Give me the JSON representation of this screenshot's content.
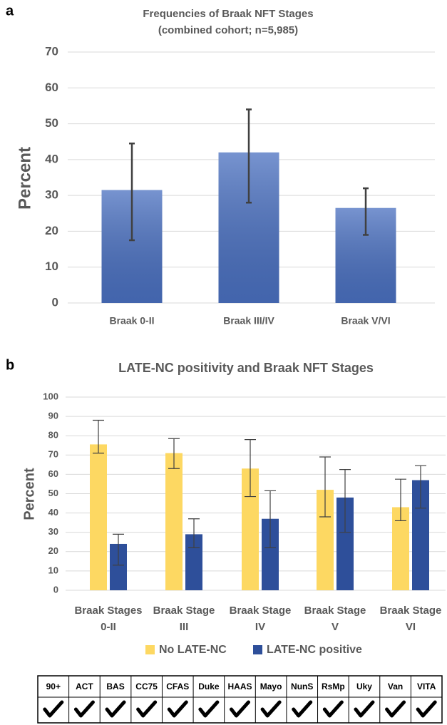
{
  "panel_labels": [
    "a",
    "b"
  ],
  "chart_data": [
    {
      "type": "bar",
      "title": "Frequencies of Braak NFT Stages",
      "subtitle": "(combined cohort; n=5,985)",
      "ylabel": "Percent",
      "categories": [
        [
          "Braak 0-II"
        ],
        [
          "Braak III/IV"
        ],
        [
          "Braak V/VI"
        ]
      ],
      "series": [
        {
          "color": "#4a70c0",
          "values": [
            31.5,
            42,
            26.5
          ],
          "error_range": [
            [
              17.5,
              44.5
            ],
            [
              28,
              54
            ],
            [
              19,
              32
            ]
          ]
        }
      ],
      "ylim": [
        0,
        70
      ],
      "yticks": [
        0,
        10,
        20,
        30,
        40,
        50,
        60,
        70
      ],
      "grid": true
    },
    {
      "type": "bar",
      "title": "LATE-NC positivity and Braak NFT Stages",
      "ylabel": "Percent",
      "categories": [
        [
          "Braak Stages",
          "0-II"
        ],
        [
          "Braak Stage",
          "III"
        ],
        [
          "Braak Stage",
          "IV"
        ],
        [
          "Braak Stage",
          "V"
        ],
        [
          "Braak Stage",
          "VI"
        ]
      ],
      "series": [
        {
          "name": "No LATE-NC",
          "color": "#fdd862",
          "values": [
            75.5,
            71,
            63,
            52,
            43
          ],
          "error_range": [
            [
              71,
              88
            ],
            [
              63,
              78.5
            ],
            [
              48.5,
              78
            ],
            [
              38,
              69
            ],
            [
              36,
              57.5
            ]
          ]
        },
        {
          "name": "LATE-NC positive",
          "color": "#2e4f9a",
          "values": [
            24,
            29,
            37,
            48,
            57
          ],
          "error_range": [
            [
              13,
              29
            ],
            [
              22,
              37
            ],
            [
              22,
              51.5
            ],
            [
              30,
              62.5
            ],
            [
              42.5,
              64.5
            ]
          ]
        }
      ],
      "ylim": [
        0,
        100
      ],
      "yticks": [
        0,
        10,
        20,
        30,
        40,
        50,
        60,
        70,
        80,
        90,
        100
      ],
      "grid": true,
      "legend": "bottom"
    }
  ],
  "table": {
    "header": [
      "90+",
      "ACT",
      "BAS",
      "CC75",
      "CFAS",
      "Duke",
      "HAAS",
      "Mayo",
      "NunS",
      "RsMp",
      "Uky",
      "Van",
      "VITA"
    ]
  }
}
